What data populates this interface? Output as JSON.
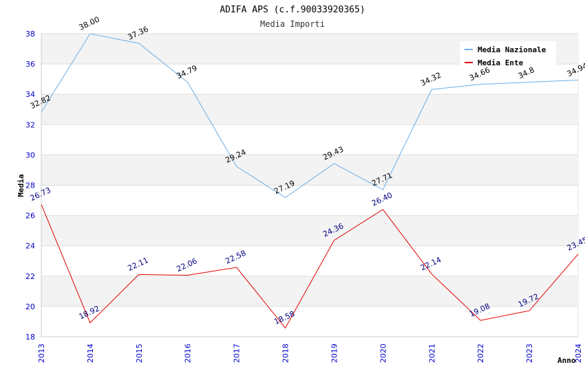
{
  "title": "ADIFA APS (c.f.90033920365)",
  "subtitle": "Media Importi",
  "chart_data": {
    "type": "line",
    "title": "ADIFA APS (c.f.90033920365)",
    "subtitle": "Media Importi",
    "xlabel": "Anno",
    "ylabel": "Media",
    "ylim": [
      18,
      38
    ],
    "yticks": [
      18,
      20,
      22,
      24,
      26,
      28,
      30,
      32,
      34,
      36,
      38
    ],
    "categories": [
      "2013",
      "2014",
      "2015",
      "2016",
      "2017",
      "2018",
      "2019",
      "2020",
      "2021",
      "2022",
      "2023",
      "2024"
    ],
    "series": [
      {
        "name": "Media Nazionale",
        "color": "#6aaee8",
        "labels": [
          "32.82",
          "38.00",
          "37.36",
          "34.79",
          "29.24",
          "27.19",
          "29.43",
          "27.71",
          "34.32",
          "34.66",
          "34.8",
          "34.94"
        ],
        "values": [
          32.82,
          38.0,
          37.36,
          34.79,
          29.24,
          27.19,
          29.43,
          27.71,
          34.32,
          34.66,
          34.8,
          34.94
        ]
      },
      {
        "name": "Media Ente",
        "color": "#e00000",
        "labels": [
          "26.73",
          "18.92",
          "22.11",
          "22.06",
          "22.58",
          "18.58",
          "24.36",
          "26.40",
          "22.14",
          "19.08",
          "19.72",
          "23.45"
        ],
        "values": [
          26.73,
          18.92,
          22.11,
          22.06,
          22.58,
          18.58,
          24.36,
          26.4,
          22.14,
          19.08,
          19.72,
          23.45
        ]
      }
    ],
    "grid": true,
    "legend_position": "top-right"
  }
}
